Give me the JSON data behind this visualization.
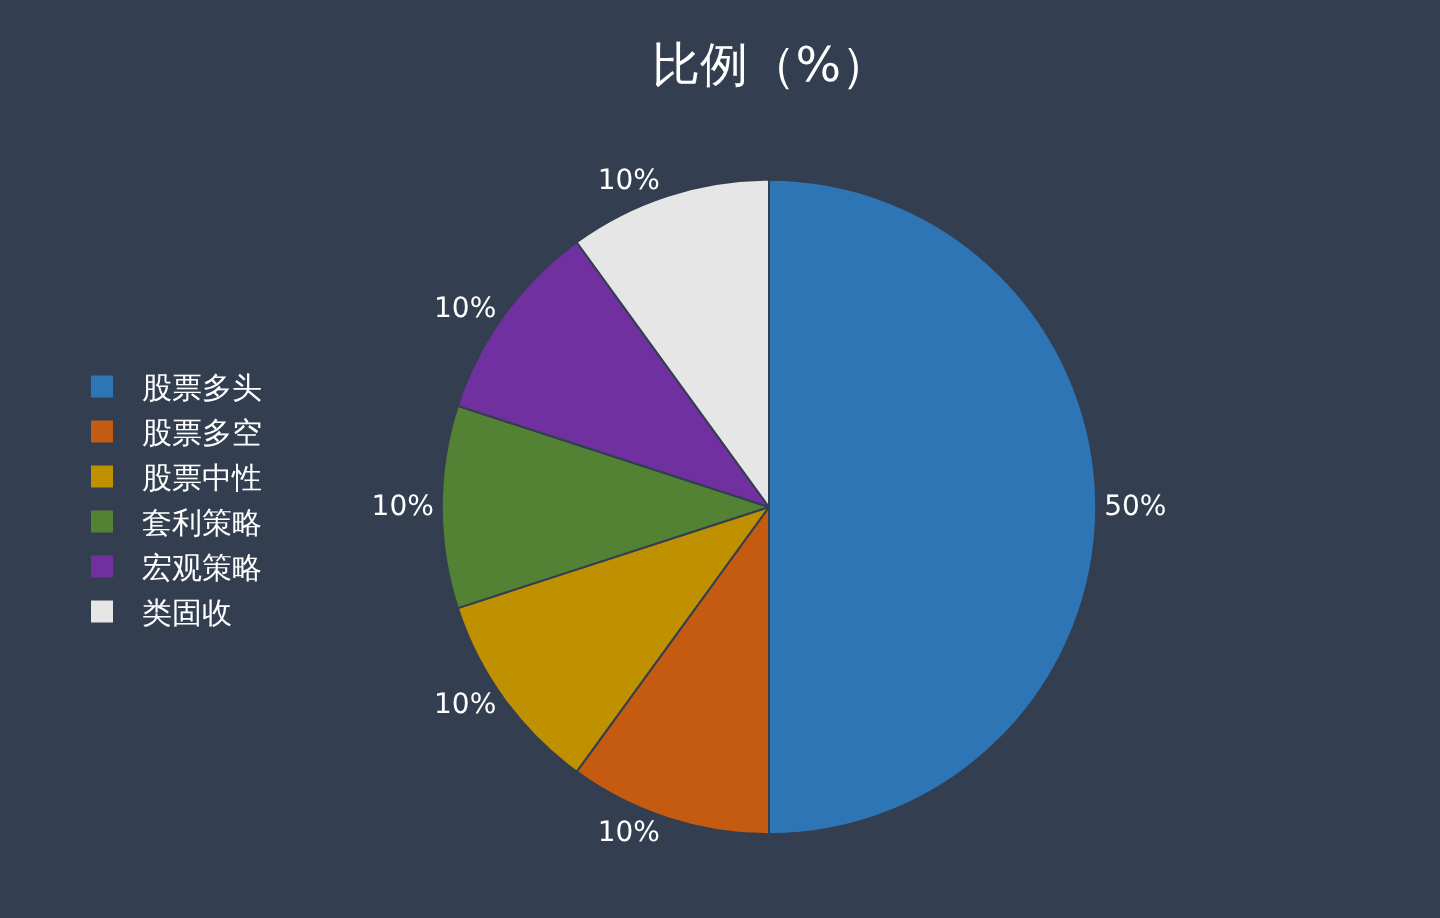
{
  "chart_data": {
    "type": "pie",
    "title": "比例（%）",
    "categories": [
      "股票多头",
      "股票多空",
      "股票中性",
      "套利策略",
      "宏观策略",
      "类固收"
    ],
    "values": [
      50,
      10,
      10,
      10,
      10,
      10
    ],
    "colors": [
      "#2e75b6",
      "#c55a11",
      "#bf9000",
      "#548235",
      "#7030a0",
      "#e7e6e6"
    ],
    "value_labels": [
      "50%",
      "10%",
      "10%",
      "10%",
      "10%",
      "10%"
    ],
    "legend": "left"
  }
}
